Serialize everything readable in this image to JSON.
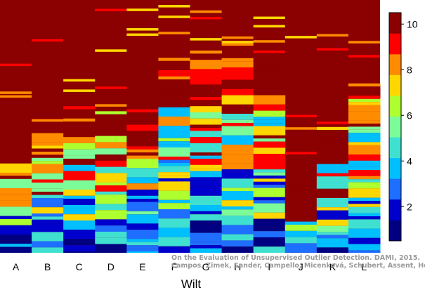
{
  "chart_data": {
    "type": "heatmap",
    "title": "",
    "xlabel": "Wilt",
    "ylabel": "",
    "categories": [
      "A",
      "B",
      "C",
      "D",
      "E",
      "F",
      "G",
      "H",
      "I",
      "J",
      "K",
      "L"
    ],
    "color_levels": [
      "#000080",
      "#0000CD",
      "#1E6EFF",
      "#00BFFF",
      "#40E0D0",
      "#7CFC98",
      "#ADFF2F",
      "#FFD700",
      "#FF8C00",
      "#FF0000",
      "#8B0000"
    ],
    "colorbar": {
      "min": 0.5,
      "max": 10.5,
      "ticks": [
        2,
        4,
        6,
        8,
        10
      ]
    },
    "column_top_fraction": [
      0.61,
      0.49,
      0.42,
      0.44,
      0.42,
      0.18,
      0.2,
      0.23,
      0.23,
      0.73,
      0.49,
      0.33
    ],
    "column_seeds": [
      11,
      23,
      37,
      41,
      53,
      67,
      71,
      83,
      97,
      101,
      113,
      127
    ],
    "background_value": 10
  },
  "watermark": {
    "line1": "On the Evaluation of Unsupervised Outlier Detection. DAMI, 2015.",
    "line2": "Campos, Zimek, Sander, Campello, Micenková, Schubert, Assent, Houle"
  }
}
